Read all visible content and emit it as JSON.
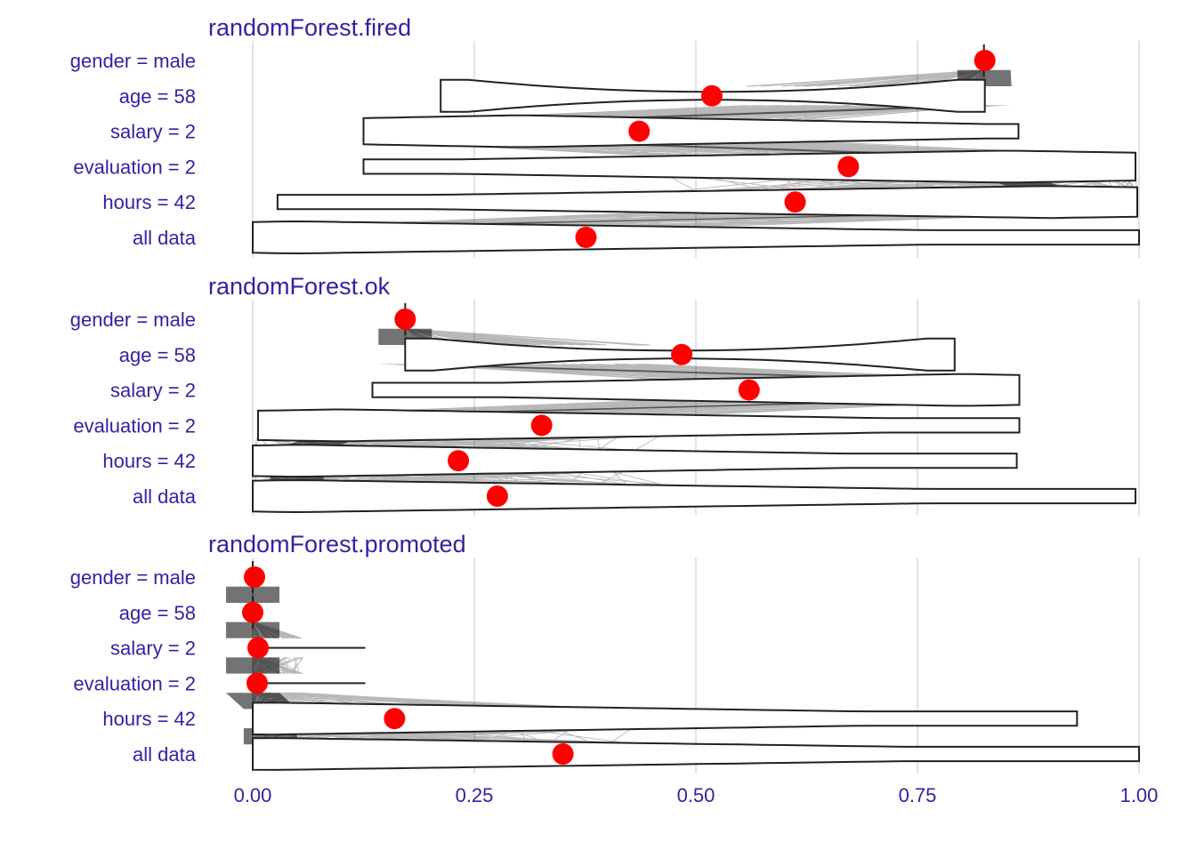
{
  "chart_data": {
    "type": "break_down_violin",
    "colors": {
      "text": "#371ea3",
      "point": "#ff0000",
      "grid": "#e3e3e3",
      "outline": "#222222"
    },
    "xlim": [
      0,
      1
    ],
    "x_ticks": [
      0,
      0.25,
      0.5,
      0.75,
      1
    ],
    "x_tick_labels": [
      "0.00",
      "0.25",
      "0.50",
      "0.75",
      "1.00"
    ],
    "grid": true,
    "variables": [
      "gender = male",
      "age = 58",
      "salary = 2",
      "evaluation = 2",
      "hours = 42",
      "all data"
    ],
    "panels": [
      {
        "title": "randomForest.fired",
        "points": [
          0.826,
          0.518,
          0.436,
          0.672,
          0.612,
          0.376
        ],
        "violins": [
          {
            "min": 0.825,
            "max": 0.825,
            "peak": 0.825,
            "shape": "line"
          },
          {
            "min": 0.212,
            "max": 0.826,
            "peak": 0.826,
            "shape": "pinch"
          },
          {
            "min": 0.125,
            "max": 0.864,
            "peak": 0.3,
            "shape": "left"
          },
          {
            "min": 0.125,
            "max": 0.996,
            "peak": 0.85,
            "shape": "right"
          },
          {
            "min": 0.028,
            "max": 0.998,
            "peak": 0.9,
            "shape": "right"
          },
          {
            "min": 0.0,
            "max": 1.0,
            "peak": 0.05,
            "shape": "left"
          }
        ]
      },
      {
        "title": "randomForest.ok",
        "points": [
          0.172,
          0.484,
          0.56,
          0.326,
          0.232,
          0.276
        ],
        "violins": [
          {
            "min": 0.172,
            "max": 0.172,
            "peak": 0.172,
            "shape": "line"
          },
          {
            "min": 0.172,
            "max": 0.792,
            "peak": 0.172,
            "shape": "pinch"
          },
          {
            "min": 0.135,
            "max": 0.865,
            "peak": 0.8,
            "shape": "right"
          },
          {
            "min": 0.006,
            "max": 0.865,
            "peak": 0.1,
            "shape": "left"
          },
          {
            "min": 0.0,
            "max": 0.862,
            "peak": 0.05,
            "shape": "left"
          },
          {
            "min": 0.0,
            "max": 0.996,
            "peak": 0.05,
            "shape": "left"
          }
        ]
      },
      {
        "title": "randomForest.promoted",
        "points": [
          0.002,
          0.0,
          0.006,
          0.005,
          0.16,
          0.35
        ],
        "violins": [
          {
            "min": 0.0,
            "max": 0.002,
            "peak": 0.0,
            "shape": "line"
          },
          {
            "min": 0.0,
            "max": 0.002,
            "peak": 0.0,
            "shape": "line"
          },
          {
            "min": 0.0,
            "max": 0.127,
            "peak": 0.0,
            "shape": "line"
          },
          {
            "min": 0.0,
            "max": 0.127,
            "peak": 0.0,
            "shape": "line"
          },
          {
            "min": 0.0,
            "max": 0.93,
            "peak": 0.02,
            "shape": "left"
          },
          {
            "min": 0.0,
            "max": 1.0,
            "peak": 0.02,
            "shape": "left"
          }
        ]
      }
    ]
  }
}
